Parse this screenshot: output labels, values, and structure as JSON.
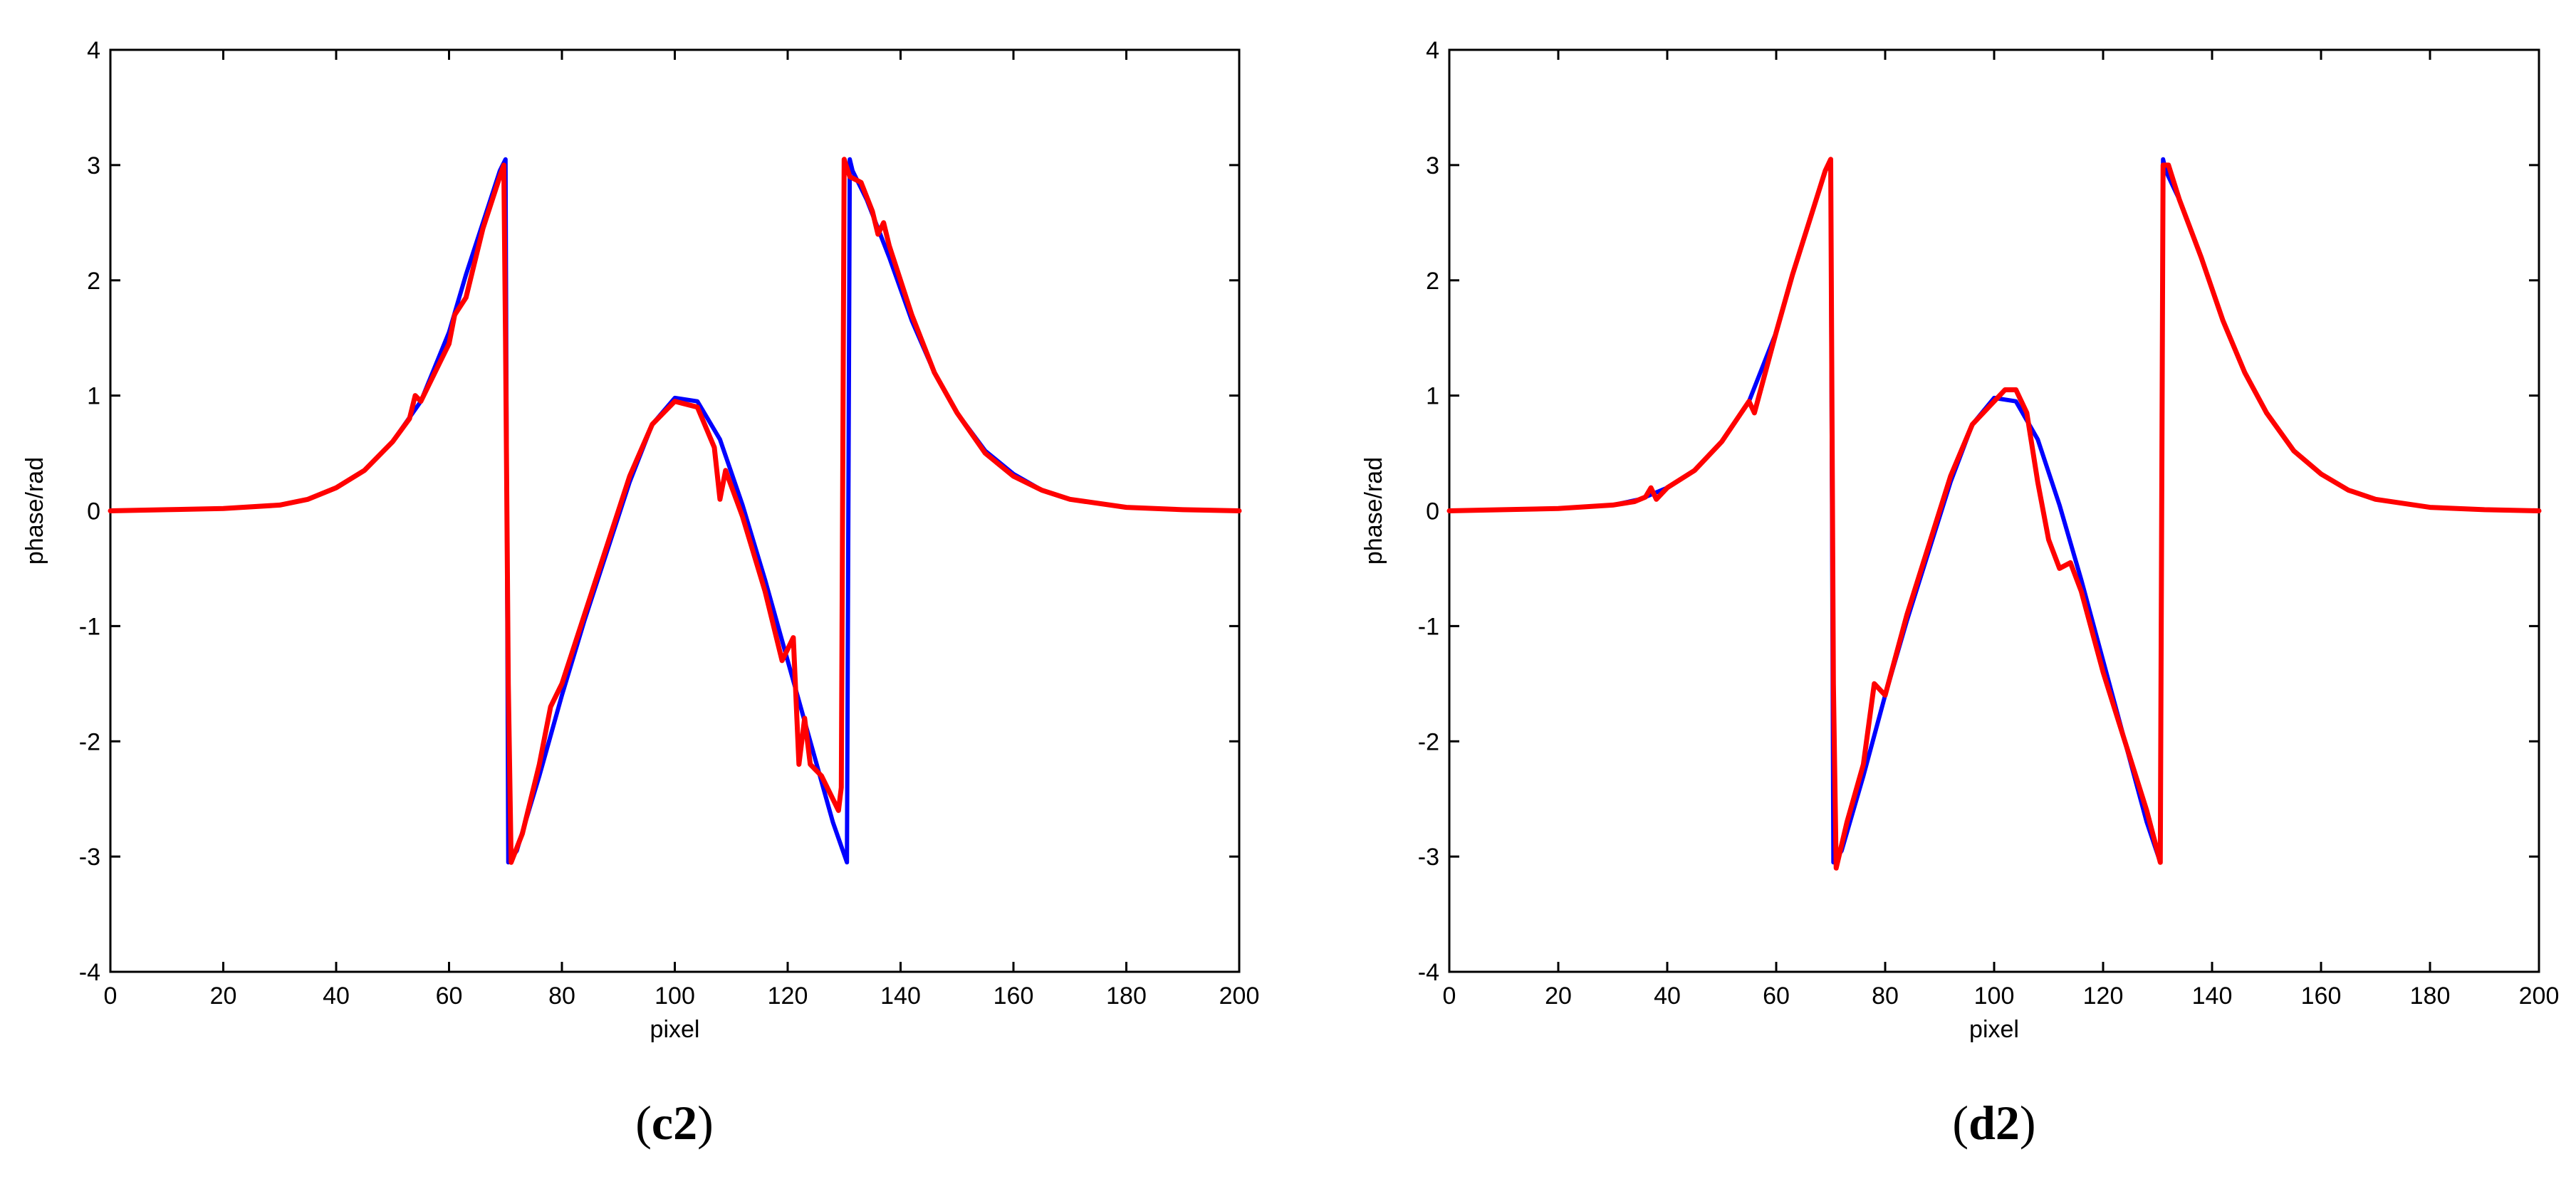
{
  "chart_data": [
    {
      "type": "line",
      "panel_label": "c2",
      "xlabel": "pixel",
      "ylabel": "phase/rad",
      "xlim": [
        0,
        200
      ],
      "ylim": [
        -4,
        4
      ],
      "xticks": [
        0,
        20,
        40,
        60,
        80,
        100,
        120,
        140,
        160,
        180,
        200
      ],
      "yticks": [
        -4,
        -3,
        -2,
        -1,
        0,
        1,
        2,
        3,
        4
      ],
      "grid": false,
      "series": [
        {
          "color": "#0000ff",
          "x": [
            0,
            10,
            20,
            30,
            35,
            40,
            45,
            50,
            55,
            60,
            63,
            66,
            69,
            70,
            70.5,
            72,
            76,
            80,
            84,
            88,
            92,
            96,
            100,
            104,
            108,
            112,
            116,
            120,
            124,
            128,
            130.5,
            131,
            131.5,
            134,
            138,
            142,
            146,
            150,
            155,
            160,
            165,
            170,
            180,
            190,
            200
          ],
          "y": [
            0,
            0.01,
            0.02,
            0.05,
            0.1,
            0.2,
            0.35,
            0.6,
            0.95,
            1.55,
            2.05,
            2.5,
            2.95,
            3.05,
            -3.05,
            -2.95,
            -2.3,
            -1.6,
            -0.95,
            -0.35,
            0.25,
            0.75,
            0.98,
            0.95,
            0.62,
            0.05,
            -0.6,
            -1.3,
            -2.0,
            -2.7,
            -3.05,
            3.05,
            2.95,
            2.7,
            2.2,
            1.65,
            1.2,
            0.85,
            0.52,
            0.32,
            0.18,
            0.1,
            0.03,
            0.01,
            0
          ]
        },
        {
          "color": "#ff0000",
          "x": [
            0,
            10,
            20,
            30,
            35,
            40,
            45,
            50,
            53,
            54,
            55,
            58,
            60,
            61,
            63,
            66,
            69,
            69.7,
            70,
            70.5,
            71,
            73,
            76,
            78,
            80,
            84,
            88,
            92,
            96,
            100,
            104,
            107,
            108,
            109,
            112,
            116,
            119,
            121,
            122,
            123,
            124,
            126,
            128,
            129,
            129.5,
            130,
            131,
            133,
            135,
            136,
            137,
            138,
            142,
            146,
            150,
            155,
            160,
            165,
            170,
            180,
            190,
            200
          ],
          "y": [
            0,
            0.01,
            0.02,
            0.05,
            0.1,
            0.2,
            0.35,
            0.6,
            0.8,
            1.0,
            0.95,
            1.25,
            1.45,
            1.7,
            1.85,
            2.45,
            2.9,
            3.0,
            1.5,
            -1.5,
            -3.05,
            -2.8,
            -2.2,
            -1.7,
            -1.5,
            -0.9,
            -0.3,
            0.3,
            0.75,
            0.95,
            0.9,
            0.55,
            0.1,
            0.35,
            -0.05,
            -0.7,
            -1.3,
            -1.1,
            -2.2,
            -1.8,
            -2.2,
            -2.3,
            -2.5,
            -2.6,
            -2.4,
            3.05,
            2.9,
            2.85,
            2.6,
            2.4,
            2.5,
            2.3,
            1.7,
            1.2,
            0.85,
            0.5,
            0.3,
            0.18,
            0.1,
            0.03,
            0.01,
            0
          ]
        }
      ]
    },
    {
      "type": "line",
      "panel_label": "d2",
      "xlabel": "pixel",
      "ylabel": "phase/rad",
      "xlim": [
        0,
        200
      ],
      "ylim": [
        -4,
        4
      ],
      "xticks": [
        0,
        20,
        40,
        60,
        80,
        100,
        120,
        140,
        160,
        180,
        200
      ],
      "yticks": [
        -4,
        -3,
        -2,
        -1,
        0,
        1,
        2,
        3,
        4
      ],
      "grid": false,
      "series": [
        {
          "color": "#0000ff",
          "x": [
            0,
            10,
            20,
            30,
            35,
            40,
            45,
            50,
            55,
            60,
            63,
            66,
            69,
            70,
            70.5,
            72,
            76,
            80,
            84,
            88,
            92,
            96,
            100,
            104,
            108,
            112,
            116,
            120,
            124,
            128,
            130.5,
            131,
            131.5,
            134,
            138,
            142,
            146,
            150,
            155,
            160,
            165,
            170,
            180,
            190,
            200
          ],
          "y": [
            0,
            0.01,
            0.02,
            0.05,
            0.1,
            0.2,
            0.35,
            0.6,
            0.95,
            1.55,
            2.05,
            2.5,
            2.95,
            3.05,
            -3.05,
            -2.95,
            -2.3,
            -1.6,
            -0.95,
            -0.35,
            0.25,
            0.75,
            0.98,
            0.95,
            0.62,
            0.05,
            -0.6,
            -1.3,
            -2.0,
            -2.7,
            -3.05,
            3.05,
            2.95,
            2.7,
            2.2,
            1.65,
            1.2,
            0.85,
            0.52,
            0.32,
            0.18,
            0.1,
            0.03,
            0.01,
            0
          ]
        },
        {
          "color": "#ff0000",
          "x": [
            0,
            10,
            20,
            30,
            34,
            36,
            37,
            38,
            40,
            45,
            50,
            55,
            56,
            60,
            63,
            66,
            69,
            70,
            70.5,
            71,
            73,
            76,
            78,
            80,
            84,
            88,
            92,
            96,
            100,
            102,
            104,
            106,
            108,
            110,
            112,
            114,
            116,
            120,
            124,
            128,
            130.5,
            131,
            132,
            134,
            138,
            142,
            146,
            150,
            155,
            160,
            165,
            170,
            180,
            190,
            200
          ],
          "y": [
            0,
            0.01,
            0.02,
            0.05,
            0.08,
            0.12,
            0.2,
            0.1,
            0.2,
            0.35,
            0.6,
            0.95,
            0.85,
            1.55,
            2.05,
            2.5,
            2.95,
            3.05,
            -1.5,
            -3.1,
            -2.7,
            -2.2,
            -1.5,
            -1.6,
            -0.9,
            -0.3,
            0.3,
            0.75,
            0.95,
            1.05,
            1.05,
            0.85,
            0.25,
            -0.25,
            -0.5,
            -0.45,
            -0.7,
            -1.4,
            -2.0,
            -2.6,
            -3.05,
            3.0,
            3.0,
            2.7,
            2.2,
            1.65,
            1.2,
            0.85,
            0.52,
            0.32,
            0.18,
            0.1,
            0.03,
            0.01,
            0
          ]
        }
      ]
    }
  ]
}
